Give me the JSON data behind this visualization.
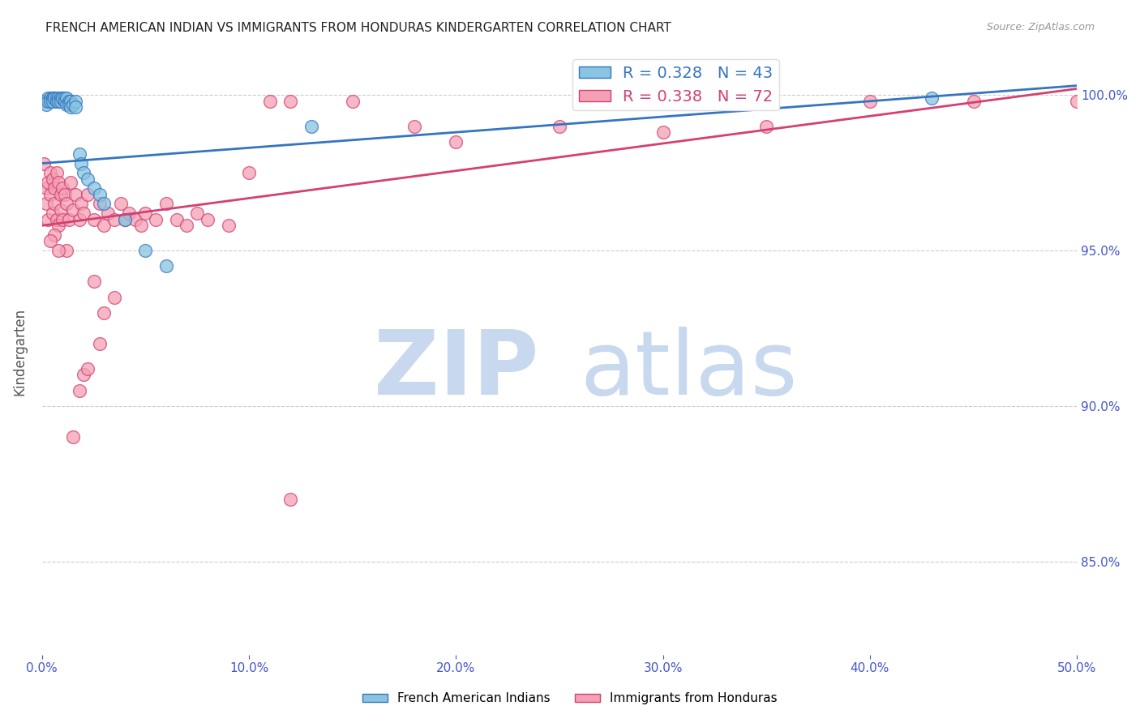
{
  "title": "FRENCH AMERICAN INDIAN VS IMMIGRANTS FROM HONDURAS KINDERGARTEN CORRELATION CHART",
  "source": "Source: ZipAtlas.com",
  "ylabel": "Kindergarten",
  "ytick_labels": [
    "100.0%",
    "95.0%",
    "90.0%",
    "85.0%"
  ],
  "ytick_values": [
    1.0,
    0.95,
    0.9,
    0.85
  ],
  "xlim": [
    0.0,
    0.5
  ],
  "ylim": [
    0.82,
    1.015
  ],
  "watermark_zip": "ZIP",
  "watermark_atlas": "atlas",
  "blue_scatter_x": [
    0.001,
    0.002,
    0.003,
    0.003,
    0.004,
    0.004,
    0.005,
    0.005,
    0.005,
    0.006,
    0.006,
    0.007,
    0.007,
    0.008,
    0.008,
    0.009,
    0.009,
    0.01,
    0.01,
    0.011,
    0.011,
    0.012,
    0.012,
    0.013,
    0.013,
    0.014,
    0.014,
    0.015,
    0.016,
    0.016,
    0.018,
    0.019,
    0.02,
    0.022,
    0.025,
    0.028,
    0.03,
    0.04,
    0.05,
    0.06,
    0.35,
    0.43,
    0.13
  ],
  "blue_scatter_y": [
    0.998,
    0.997,
    0.999,
    0.998,
    0.999,
    0.998,
    0.999,
    0.999,
    0.998,
    0.999,
    0.999,
    0.999,
    0.998,
    0.999,
    0.998,
    0.999,
    0.998,
    0.999,
    0.999,
    0.999,
    0.998,
    0.999,
    0.997,
    0.998,
    0.997,
    0.998,
    0.996,
    0.997,
    0.998,
    0.996,
    0.981,
    0.978,
    0.975,
    0.973,
    0.97,
    0.968,
    0.965,
    0.96,
    0.95,
    0.945,
    1.0,
    0.999,
    0.99
  ],
  "pink_scatter_x": [
    0.001,
    0.002,
    0.002,
    0.003,
    0.003,
    0.004,
    0.004,
    0.005,
    0.005,
    0.006,
    0.006,
    0.007,
    0.007,
    0.008,
    0.008,
    0.009,
    0.009,
    0.01,
    0.01,
    0.011,
    0.012,
    0.013,
    0.014,
    0.015,
    0.016,
    0.018,
    0.019,
    0.02,
    0.022,
    0.025,
    0.028,
    0.03,
    0.032,
    0.035,
    0.038,
    0.04,
    0.042,
    0.045,
    0.048,
    0.05,
    0.055,
    0.06,
    0.065,
    0.07,
    0.075,
    0.08,
    0.09,
    0.1,
    0.11,
    0.12,
    0.15,
    0.18,
    0.2,
    0.25,
    0.3,
    0.35,
    0.4,
    0.45,
    0.5,
    0.02,
    0.015,
    0.025,
    0.03,
    0.035,
    0.018,
    0.022,
    0.028,
    0.012,
    0.008,
    0.006,
    0.004,
    0.12
  ],
  "pink_scatter_y": [
    0.978,
    0.97,
    0.965,
    0.972,
    0.96,
    0.975,
    0.968,
    0.973,
    0.962,
    0.97,
    0.965,
    0.975,
    0.96,
    0.972,
    0.958,
    0.968,
    0.963,
    0.97,
    0.96,
    0.968,
    0.965,
    0.96,
    0.972,
    0.963,
    0.968,
    0.96,
    0.965,
    0.962,
    0.968,
    0.96,
    0.965,
    0.958,
    0.962,
    0.96,
    0.965,
    0.96,
    0.962,
    0.96,
    0.958,
    0.962,
    0.96,
    0.965,
    0.96,
    0.958,
    0.962,
    0.96,
    0.958,
    0.975,
    0.998,
    0.998,
    0.998,
    0.99,
    0.985,
    0.99,
    0.988,
    0.99,
    0.998,
    0.998,
    0.998,
    0.91,
    0.89,
    0.94,
    0.93,
    0.935,
    0.905,
    0.912,
    0.92,
    0.95,
    0.95,
    0.955,
    0.953,
    0.87
  ],
  "blue_line_x": [
    0.0,
    0.5
  ],
  "blue_line_y": [
    0.978,
    1.003
  ],
  "pink_line_x": [
    0.0,
    0.5
  ],
  "pink_line_y": [
    0.958,
    1.002
  ],
  "R_blue": 0.328,
  "N_blue": 43,
  "R_pink": 0.338,
  "N_pink": 72,
  "blue_color": "#89c4e1",
  "pink_color": "#f4a0b5",
  "blue_line_color": "#3575c0",
  "pink_line_color": "#d44070",
  "axis_color": "#4455cc",
  "title_color": "#222222",
  "background_color": "#ffffff",
  "grid_color": "#cccccc",
  "watermark_zip_color": "#c8d8ee",
  "watermark_atlas_color": "#c8d8ee",
  "legend_blue_text": "#3575c0",
  "legend_pink_text": "#d44070"
}
